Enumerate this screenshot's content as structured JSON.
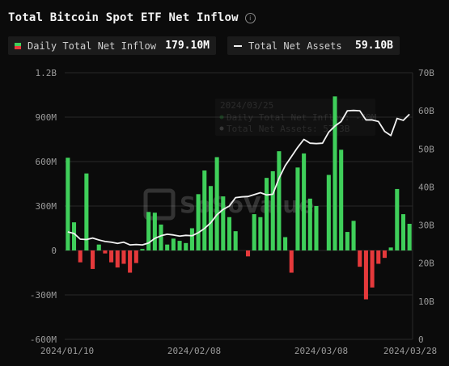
{
  "title": "Total Bitcoin Spot ETF Net Inflow",
  "info_icon": "info-icon",
  "legend": {
    "inflow_label": "Daily Total Net Inflow",
    "inflow_value": "179.10M",
    "assets_label": "Total Net Assets",
    "assets_value": "59.10B"
  },
  "tooltip": {
    "date": "2024/03/25",
    "line1": "Daily Total Net Inflow: -70M",
    "line2": "Total Net Assets: 57.3B"
  },
  "watermark": "SoSoValue",
  "colors": {
    "positive": "#3fcf5a",
    "negative": "#e5393b",
    "line": "#f2f2f2",
    "background": "#0b0b0b"
  },
  "chart_data": {
    "type": "bar",
    "x_ticks": [
      "2024/01/10",
      "2024/02/08",
      "2024/03/08",
      "2024/03/28"
    ],
    "y_left_ticks": [
      "1.2B",
      "900M",
      "600M",
      "300M",
      "0",
      "-300M",
      "-600M"
    ],
    "y_right_ticks": [
      "70B",
      "60B",
      "50B",
      "40B",
      "30B",
      "20B",
      "10B",
      "0"
    ],
    "ylim_left": [
      -600,
      1200
    ],
    "ylim_right": [
      0,
      70
    ],
    "grid": true,
    "series": [
      {
        "name": "Daily Total Net Inflow",
        "unit": "M",
        "values": [
          626,
          190,
          -80,
          520,
          -125,
          40,
          -20,
          -80,
          -115,
          -90,
          -150,
          -85,
          10,
          260,
          255,
          175,
          40,
          80,
          65,
          50,
          150,
          380,
          540,
          435,
          630,
          365,
          225,
          130,
          0,
          -40,
          245,
          225,
          490,
          535,
          670,
          90,
          -150,
          560,
          655,
          350,
          300,
          0,
          510,
          1040,
          680,
          125,
          200,
          -110,
          -330,
          -250,
          -90,
          -50,
          20,
          415,
          245,
          180
        ]
      },
      {
        "name": "Total Net Assets",
        "unit": "B",
        "values": [
          28.2,
          27.8,
          26.3,
          26.2,
          26.6,
          26.1,
          25.7,
          25.5,
          25.2,
          25.5,
          24.8,
          24.9,
          24.8,
          25.3,
          26.5,
          27.2,
          27.6,
          27.4,
          27.1,
          27.3,
          27.2,
          28.0,
          29.1,
          30.6,
          32.7,
          34.1,
          35.0,
          37.2,
          37.4,
          37.5,
          38.0,
          38.5,
          37.9,
          38.1,
          42.3,
          45.6,
          48.0,
          50.4,
          52.5,
          51.5,
          51.4,
          51.5,
          54.4,
          56.0,
          57.2,
          60.0,
          60.1,
          60.0,
          57.6,
          57.6,
          57.2,
          54.6,
          53.5,
          58.0,
          57.5,
          59.1
        ]
      }
    ]
  }
}
